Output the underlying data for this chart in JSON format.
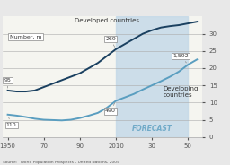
{
  "background_color": "#e8e8e8",
  "plot_background": "#f5f5f0",
  "forecast_bg": "#c5d9e8",
  "forecast_start": 2010,
  "forecast_end": 2050,
  "forecast_label": "FORECAST",
  "developed_label": "Developed countries",
  "developing_label": "Developing\ncountries",
  "number_label": "Number, m",
  "source_text": "Source: \"World Population Prospects\", United Nations, 2009",
  "developed_color": "#1a4060",
  "developing_color": "#5a9ec0",
  "developed_x": [
    1950,
    1955,
    1960,
    1965,
    1970,
    1975,
    1980,
    1985,
    1990,
    1995,
    2000,
    2005,
    2010,
    2015,
    2020,
    2025,
    2030,
    2035,
    2040,
    2045,
    2050,
    2055
  ],
  "developed_y": [
    13.5,
    13.2,
    13.2,
    13.5,
    14.5,
    15.5,
    16.5,
    17.5,
    18.5,
    20.0,
    21.5,
    23.5,
    25.5,
    27.0,
    28.5,
    30.0,
    31.0,
    31.8,
    32.2,
    32.5,
    33.0,
    33.5
  ],
  "developing_x": [
    1950,
    1955,
    1960,
    1965,
    1970,
    1975,
    1980,
    1985,
    1990,
    1995,
    2000,
    2005,
    2010,
    2015,
    2020,
    2025,
    2030,
    2035,
    2040,
    2045,
    2050,
    2055
  ],
  "developing_y": [
    6.5,
    6.2,
    5.8,
    5.3,
    5.0,
    4.9,
    4.8,
    5.0,
    5.5,
    6.2,
    7.0,
    8.5,
    10.5,
    11.5,
    12.5,
    13.8,
    15.0,
    16.2,
    17.5,
    19.0,
    21.0,
    22.5
  ],
  "xlim": [
    1947,
    2058
  ],
  "ylim": [
    0,
    35
  ],
  "xticks": [
    1950,
    1970,
    1990,
    2010,
    2030,
    2050
  ],
  "xticklabels": [
    "1950",
    "70",
    "90",
    "2010",
    "30",
    "50"
  ],
  "yticks": [
    0,
    5,
    10,
    15,
    20,
    25,
    30
  ],
  "grid_color": "#aaaaaa",
  "tick_color": "#555555",
  "font_color": "#333333",
  "ann_95_x": 1950,
  "ann_95_y": 13.5,
  "ann_110_x": 1950,
  "ann_110_y": 6.5,
  "ann_269_x": 2010,
  "ann_269_y": 25.5,
  "ann_490_x": 2010,
  "ann_490_y": 10.5,
  "ann_1592_x": 2050,
  "ann_1592_y": 21.0
}
